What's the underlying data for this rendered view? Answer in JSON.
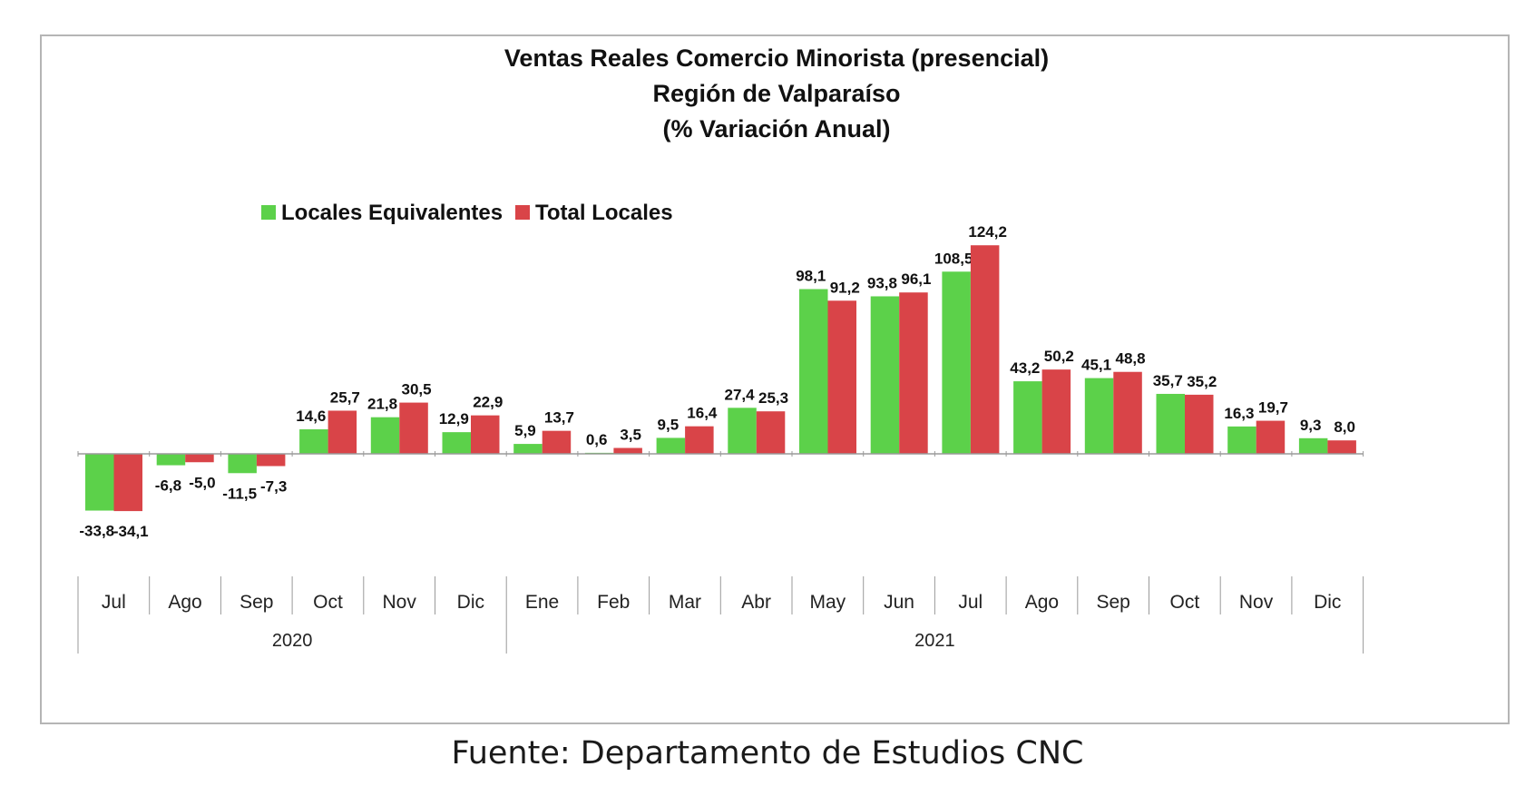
{
  "chart_data": {
    "type": "bar",
    "title": [
      "Ventas Reales Comercio Minorista (presencial)",
      "Región de Valparaíso",
      "(% Variación Anual)"
    ],
    "categories": [
      "Jul",
      "Ago",
      "Sep",
      "Oct",
      "Nov",
      "Dic",
      "Ene",
      "Feb",
      "Mar",
      "Abr",
      "May",
      "Jun",
      "Jul",
      "Ago",
      "Sep",
      "Oct",
      "Nov",
      "Dic"
    ],
    "year_groups": [
      {
        "label": "2020",
        "count": 6
      },
      {
        "label": "2021",
        "count": 12
      }
    ],
    "series": [
      {
        "name": "Locales Equivalentes",
        "color": "#5cd14a",
        "values": [
          -33.8,
          -6.8,
          -11.5,
          14.6,
          21.8,
          12.9,
          5.9,
          0.6,
          9.5,
          27.4,
          98.1,
          93.8,
          108.5,
          43.2,
          45.1,
          35.7,
          16.3,
          9.3
        ],
        "labels": [
          "-33,8",
          "-6,8",
          "-11,5",
          "14,6",
          "21,8",
          "12,9",
          "5,9",
          "0,6",
          "9,5",
          "27,4",
          "98,1",
          "93,8",
          "108,5",
          "43,2",
          "45,1",
          "35,7",
          "16,3",
          "9,3"
        ]
      },
      {
        "name": "Total Locales",
        "color": "#d94448",
        "values": [
          -34.1,
          -5.0,
          -7.3,
          25.7,
          30.5,
          22.9,
          13.7,
          3.5,
          16.4,
          25.3,
          91.2,
          96.1,
          124.2,
          50.2,
          48.8,
          35.2,
          19.7,
          8.0
        ],
        "labels": [
          "-34,1",
          "-5,0",
          "-7,3",
          "25,7",
          "30,5",
          "22,9",
          "13,7",
          "3,5",
          "16,4",
          "25,3",
          "91,2",
          "96,1",
          "124,2",
          "50,2",
          "48,8",
          "35,2",
          "19,7",
          "8,0"
        ]
      }
    ],
    "ylim": [
      -60,
      140
    ],
    "legend_position": "top-left",
    "grid": false
  },
  "caption": "Fuente: Departamento de Estudios CNC"
}
